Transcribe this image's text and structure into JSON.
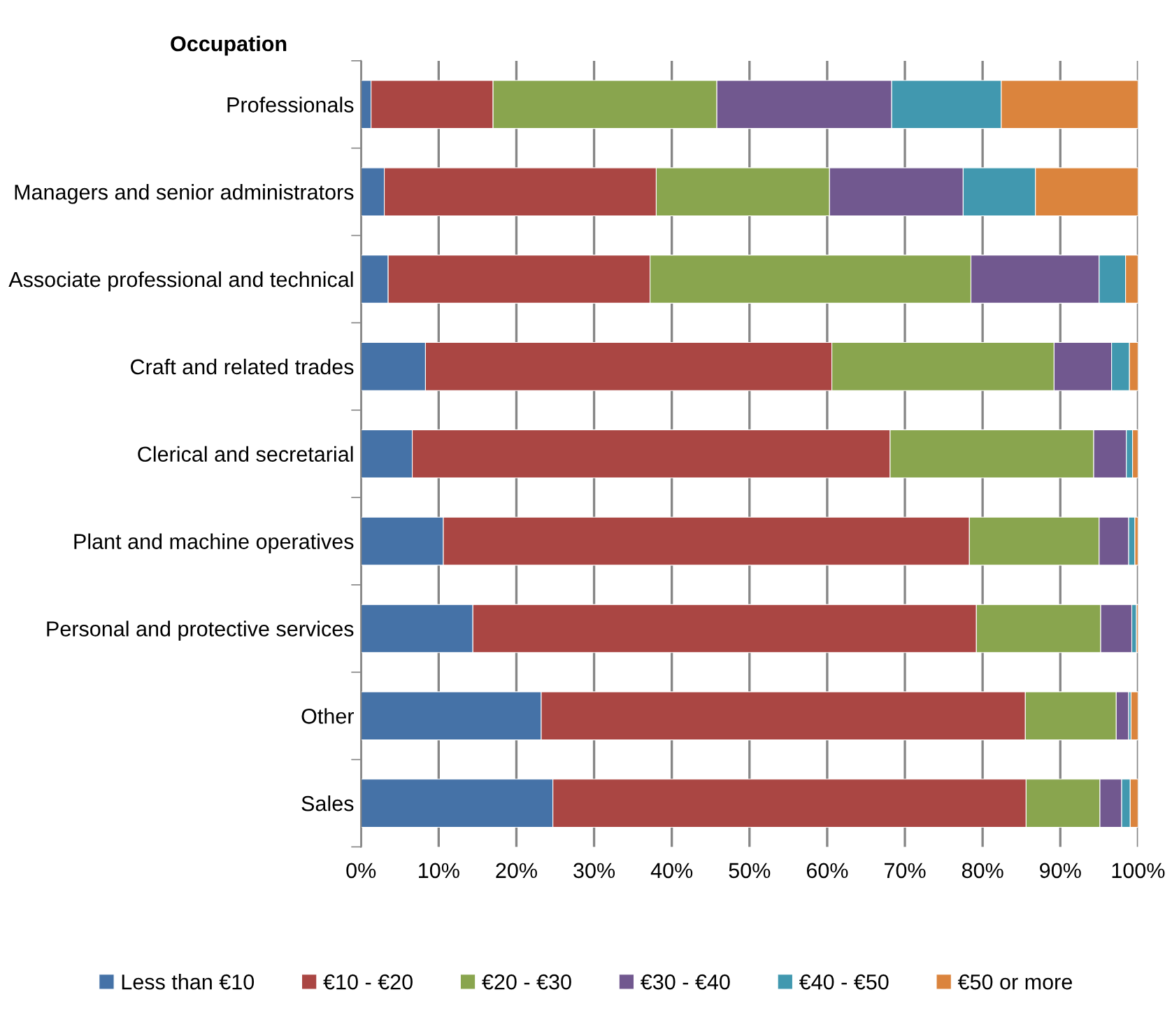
{
  "chart_data": {
    "type": "bar",
    "orientation": "horizontal",
    "stacked": true,
    "ylabel": "Occupation",
    "categories": [
      "Professionals",
      "Managers and senior administrators",
      "Associate professional and technical",
      "Craft and related trades",
      "Clerical and secretarial",
      "Plant and machine operatives",
      "Personal and protective services",
      "Other",
      "Sales"
    ],
    "series": [
      {
        "name": "Less than €10",
        "color": "#4572a7",
        "values": [
          1.3,
          3.0,
          3.5,
          8.3,
          6.6,
          10.6,
          14.4,
          23.2,
          24.7
        ]
      },
      {
        "name": "€10 - €20",
        "color": "#aa4643",
        "values": [
          15.7,
          35.0,
          33.7,
          52.3,
          61.5,
          67.7,
          64.8,
          62.3,
          60.9
        ]
      },
      {
        "name": "€20 - €30",
        "color": "#89a54e",
        "values": [
          28.8,
          22.3,
          41.3,
          28.6,
          26.2,
          16.7,
          16.0,
          11.7,
          9.5
        ]
      },
      {
        "name": "€30 - €40",
        "color": "#71588f",
        "values": [
          22.5,
          17.2,
          16.5,
          7.4,
          4.2,
          3.8,
          4.0,
          1.6,
          2.8
        ]
      },
      {
        "name": "€40 - €50",
        "color": "#4198af",
        "values": [
          14.1,
          9.3,
          3.4,
          2.3,
          0.8,
          0.8,
          0.6,
          0.3,
          1.1
        ]
      },
      {
        "name": "€50 or more",
        "color": "#db843d",
        "values": [
          17.6,
          13.2,
          1.6,
          1.1,
          0.7,
          0.4,
          0.2,
          0.9,
          1.0
        ]
      }
    ],
    "xlim": [
      0,
      100
    ],
    "xticks": [
      {
        "value": 0,
        "label": "0%"
      },
      {
        "value": 10,
        "label": "10%"
      },
      {
        "value": 20,
        "label": "20%"
      },
      {
        "value": 30,
        "label": "30%"
      },
      {
        "value": 40,
        "label": "40%"
      },
      {
        "value": 50,
        "label": "50%"
      },
      {
        "value": 60,
        "label": "60%"
      },
      {
        "value": 70,
        "label": "70%"
      },
      {
        "value": 80,
        "label": "80%"
      },
      {
        "value": 90,
        "label": "90%"
      },
      {
        "value": 100,
        "label": "100%"
      }
    ],
    "grid": "x",
    "legend": "bottom"
  }
}
